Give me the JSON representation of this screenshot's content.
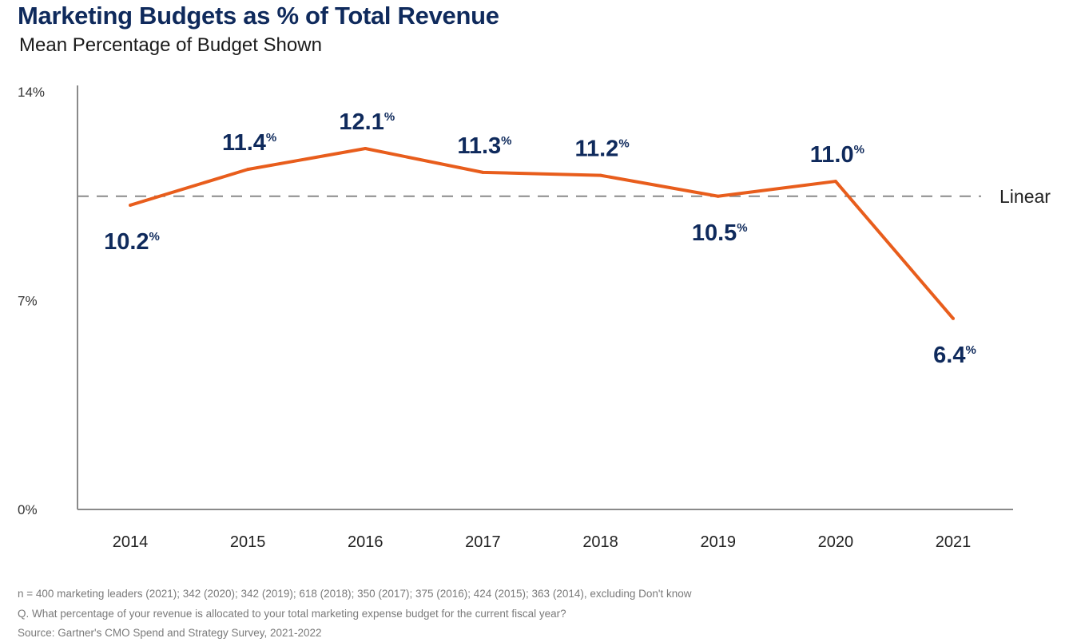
{
  "title": "Marketing Budgets as % of Total Revenue",
  "subtitle": "Mean Percentage of Budget Shown",
  "colors": {
    "line": "#e85d1c",
    "label": "#0f2a5c",
    "axis": "#8a8a8a",
    "trend": "#8a8a8a"
  },
  "chart_data": {
    "type": "line",
    "title": "Marketing Budgets as % of Total Revenue",
    "subtitle": "Mean Percentage of Budget Shown",
    "categories": [
      "2014",
      "2015",
      "2016",
      "2017",
      "2018",
      "2019",
      "2020",
      "2021"
    ],
    "series": [
      {
        "values": [
          10.2,
          11.4,
          12.1,
          11.3,
          11.2,
          10.5,
          11.0,
          6.4
        ],
        "labels": [
          "10.2",
          "11.4",
          "12.1",
          "11.3",
          "11.2",
          "10.5",
          "11.0",
          "6.4"
        ]
      }
    ],
    "trendline": {
      "name": "Linear",
      "value": 10.5
    },
    "label_suffix": "%",
    "ylim": [
      0,
      14
    ],
    "yticks": [
      {
        "value": 0,
        "label": "0%"
      },
      {
        "value": 7,
        "label": "7%"
      },
      {
        "value": 14,
        "label": "14%"
      }
    ],
    "grid": false,
    "legend": "none"
  },
  "notes": [
    "n = 400 marketing leaders (2021); 342 (2020); 342 (2019); 618 (2018); 350 (2017); 375 (2016); 424 (2015); 363 (2014), excluding Don't know",
    "Q. What percentage of your revenue is allocated to your total marketing expense budget for the current fiscal year?",
    "Source: Gartner's CMO Spend and Strategy Survey, 2021-2022"
  ]
}
